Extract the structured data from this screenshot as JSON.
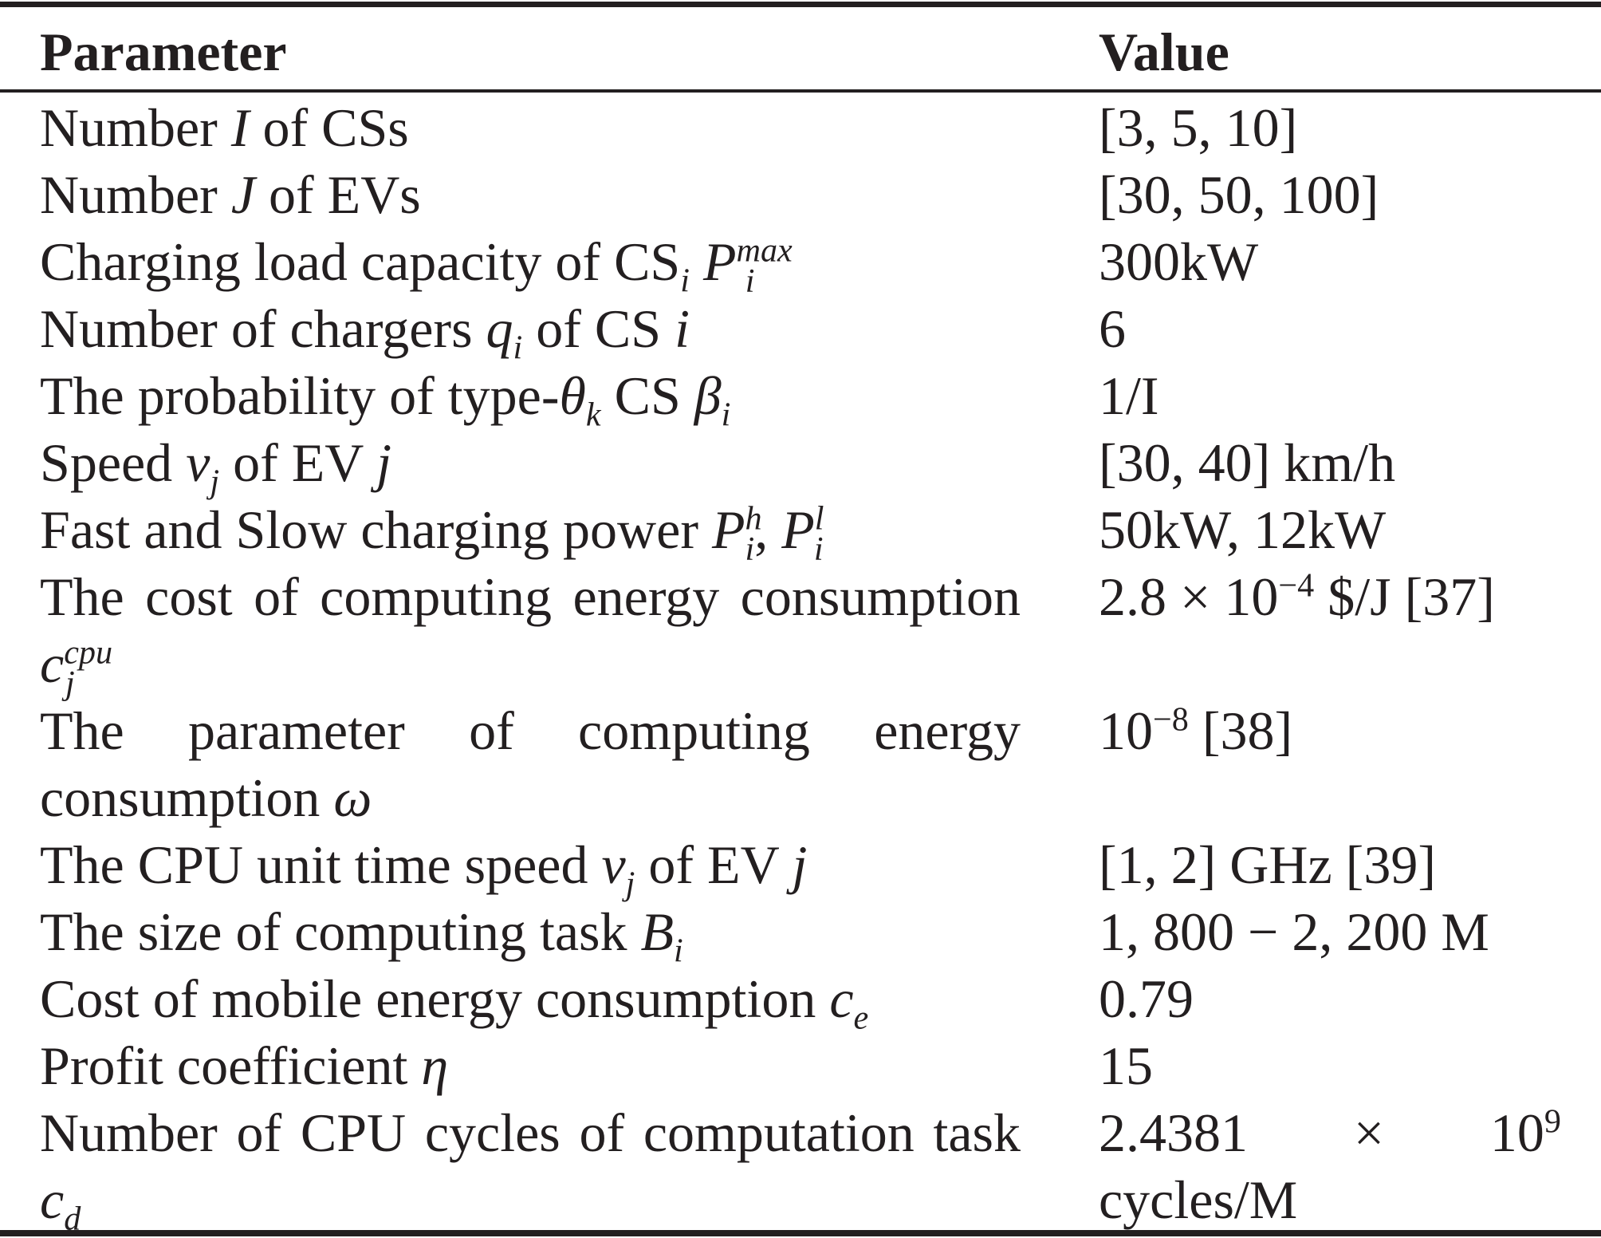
{
  "table": {
    "headers": {
      "parameter": "Parameter",
      "value": "Value"
    },
    "rows": [
      {
        "param_text": "Number ",
        "param_math": "I",
        "param_sub": "",
        "param_sup": "",
        "param_after": " of CSs",
        "value": "[3, 5, 10]"
      },
      {
        "param_text": "Number ",
        "param_math": "J",
        "param_sub": "",
        "param_sup": "",
        "param_after": " of EVs",
        "value": "[30, 50, 100]"
      },
      {
        "param_text": "Charging load capacity of CS",
        "param_cs_sub": "i",
        "param_math": "P",
        "param_sub": "i",
        "param_sup": "max",
        "param_after": "",
        "value": "300kW"
      },
      {
        "param_text": "Number of chargers ",
        "param_math": "q",
        "param_sub": "i",
        "param_sup": "",
        "param_after": " of CS ",
        "param_math2": "i",
        "value": "6"
      },
      {
        "param_text": "The probability of type-",
        "param_math": "θ",
        "param_sub": "k",
        "param_after": " CS ",
        "param_math2": "β",
        "param_sub2": "i",
        "value": "1/I"
      },
      {
        "param_text": "Speed ",
        "param_math": "v",
        "param_sub": "j",
        "param_after": " of EV ",
        "param_math2": "j",
        "value": "[30, 40] km/h"
      },
      {
        "param_text": "Fast and Slow charging power ",
        "param_math": "P",
        "param_sub": "i",
        "param_sup": "h",
        "param_after": ", ",
        "param_math2": "P",
        "param_sub2": "i",
        "param_sup2": "l",
        "value": "50kW, 12kW"
      },
      {
        "param_text": "The cost of computing energy consumption ",
        "param_math": "c",
        "param_sub": "j",
        "param_sup": "cpu",
        "param_after": "",
        "value_text": "2.8 × 10",
        "value_sup": "−4",
        "value_after": " $/J [37]",
        "lines": 2
      },
      {
        "param_text": "The parameter of computing energy consumption ",
        "param_math": "ω",
        "param_after": "",
        "value_text": "10",
        "value_sup": "−8",
        "value_after": " [38]",
        "lines": 2
      },
      {
        "param_text": "The CPU unit time speed ",
        "param_math": "ν",
        "param_sub": "j",
        "param_after": " of EV ",
        "param_math2": "j",
        "value": "[1, 2] GHz [39]"
      },
      {
        "param_text": "The size of computing task ",
        "param_math": "B",
        "param_sub": "i",
        "param_after": "",
        "value": "1, 800 − 2, 200 M"
      },
      {
        "param_text": "Cost of mobile energy consumption ",
        "param_math": "c",
        "param_sub": "e",
        "param_after": "",
        "value": "0.79"
      },
      {
        "param_text": "Profit coefficient ",
        "param_math": "η",
        "param_after": "",
        "value": "15"
      },
      {
        "param_text": "Number of CPU cycles of computation task ",
        "param_math": "c",
        "param_sub": "d",
        "param_after": "",
        "value_text": "2.4381 × 10",
        "value_sup": "9",
        "value_after": " cycles/M",
        "lines": 2
      }
    ]
  }
}
